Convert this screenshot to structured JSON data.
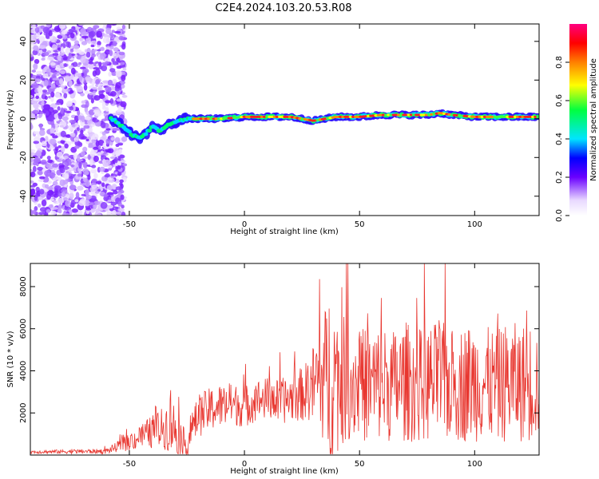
{
  "title": "C2E4.2024.103.20.53.R08",
  "chart_data": [
    {
      "type": "heatmap",
      "xlabel": "Height of straight line (km)",
      "ylabel": "Frequency (Hz)",
      "xlim": [
        -93,
        128
      ],
      "ylim": [
        -50,
        49
      ],
      "xticks": [
        -50,
        0,
        50,
        100
      ],
      "yticks": [
        -40,
        -20,
        0,
        20,
        40
      ],
      "noise_region_x": [
        -93,
        -52
      ],
      "ridge": {
        "x": [
          -58,
          -55,
          -52,
          -49,
          -46,
          -43,
          -40,
          -37,
          -34,
          -31,
          -28,
          -25,
          -20,
          -10,
          0,
          10,
          20,
          25,
          30,
          35,
          40,
          50,
          60,
          70,
          80,
          85,
          90,
          100,
          110,
          120,
          128
        ],
        "frequency": [
          0,
          -2,
          -5,
          -8,
          -10,
          -8,
          -4,
          -6,
          -4,
          -2,
          -1,
          0,
          0,
          0,
          1,
          1,
          1,
          0,
          -1,
          0,
          1,
          1,
          2,
          2,
          2,
          3,
          2,
          1,
          1,
          1,
          1
        ]
      },
      "colorbar": {
        "label": "Normalized spectral amplitude",
        "ticks": [
          0.0,
          0.2,
          0.4,
          0.6,
          0.8
        ],
        "range": [
          0,
          1
        ]
      }
    },
    {
      "type": "line",
      "xlabel": "Height of straight line (km)",
      "ylabel": "SNR (10 * v/v)",
      "xlim": [
        -93,
        128
      ],
      "ylim": [
        0,
        9100
      ],
      "xticks": [
        -50,
        0,
        50,
        100
      ],
      "yticks": [
        2000,
        4000,
        6000,
        8000
      ],
      "color": "#e8362f",
      "envelope": {
        "x": [
          -93,
          -60,
          -55,
          -50,
          -45,
          -40,
          -35,
          -32,
          -28,
          -25,
          -22,
          -18,
          -12,
          -5,
          0,
          5,
          10,
          15,
          20,
          25,
          28,
          32,
          35,
          37,
          40,
          45,
          50,
          55,
          60,
          65,
          70,
          75,
          80,
          85,
          90,
          95,
          100,
          105,
          110,
          115,
          120,
          125,
          128
        ],
        "mean": [
          150,
          180,
          400,
          600,
          900,
          1100,
          1300,
          1500,
          900,
          400,
          1500,
          2000,
          2300,
          2400,
          2300,
          2600,
          2700,
          2500,
          2700,
          2900,
          3100,
          3600,
          3700,
          3800,
          3600,
          3500,
          3400,
          3300,
          3400,
          3300,
          3500,
          3300,
          3400,
          3500,
          3300,
          3400,
          3500,
          3400,
          3300,
          3500,
          3400,
          3500,
          3400
        ],
        "amp": [
          80,
          120,
          250,
          400,
          600,
          800,
          1000,
          1500,
          900,
          500,
          900,
          1000,
          1100,
          1000,
          1000,
          1000,
          1000,
          1100,
          1100,
          1300,
          1500,
          2500,
          3300,
          4500,
          3500,
          2800,
          2700,
          2800,
          2800,
          2700,
          2900,
          2700,
          2800,
          2900,
          2700,
          2800,
          2900,
          2700,
          2700,
          2900,
          2800,
          2900,
          2700
        ]
      }
    }
  ]
}
